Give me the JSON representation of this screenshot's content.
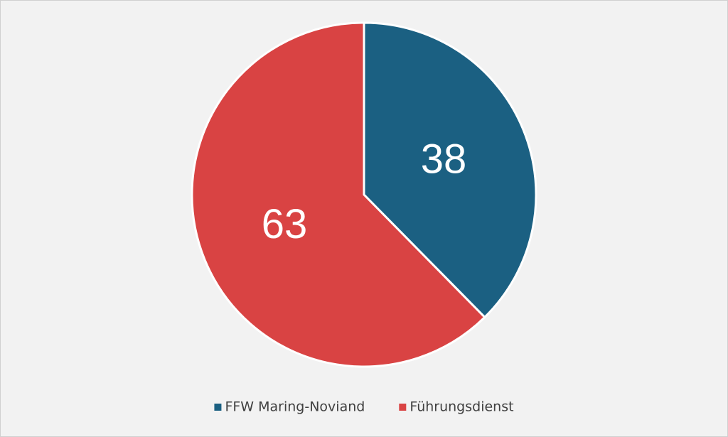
{
  "chart_data": {
    "type": "pie",
    "categories": [
      "FFW Maring-Noviand",
      "Führungsdienst"
    ],
    "values": [
      38,
      63
    ],
    "colors": [
      "#1b6082",
      "#d94343"
    ],
    "legend": "bottom"
  }
}
